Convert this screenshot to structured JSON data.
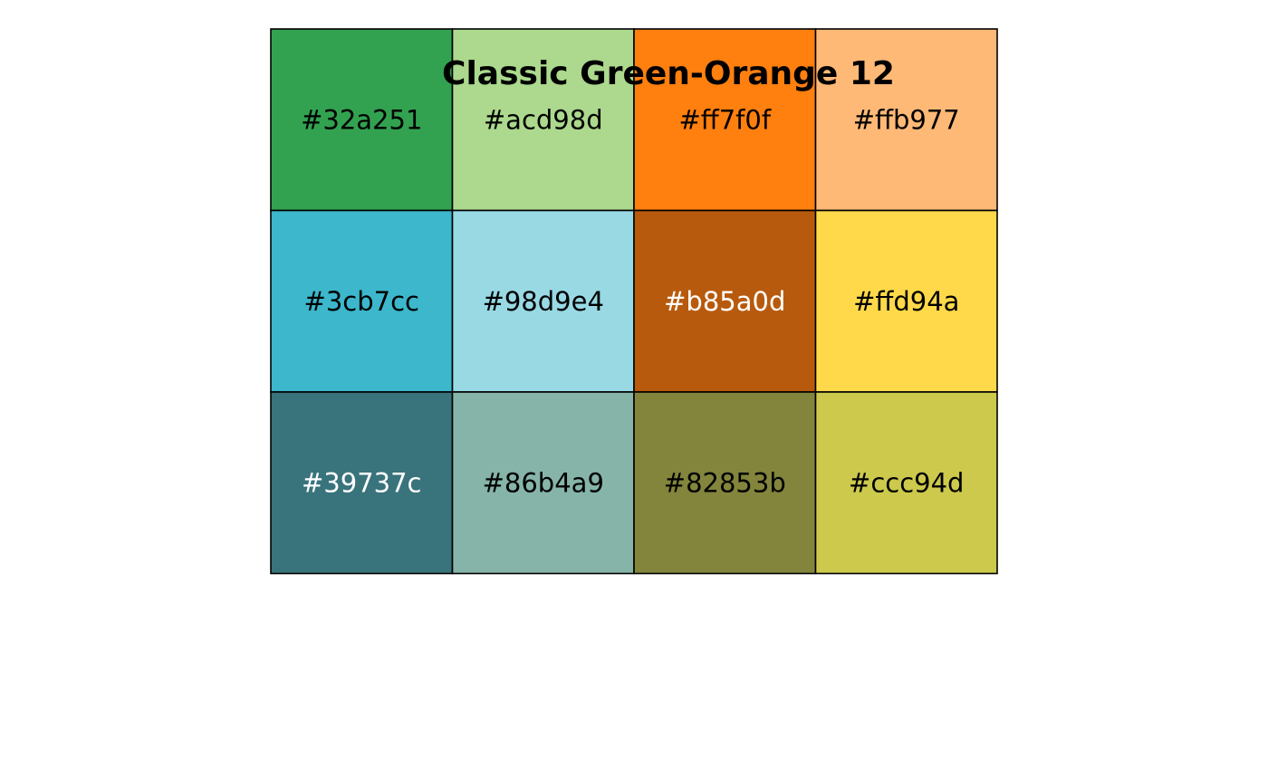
{
  "chart_data": {
    "type": "heatmap",
    "title": "Classic Green-Orange 12",
    "rows": 3,
    "cols": 4,
    "cells": [
      {
        "row": 0,
        "col": 0,
        "label": "#32a251",
        "color": "#32a251",
        "text_color": "#000000"
      },
      {
        "row": 0,
        "col": 1,
        "label": "#acd98d",
        "color": "#acd98d",
        "text_color": "#000000"
      },
      {
        "row": 0,
        "col": 2,
        "label": "#ff7f0f",
        "color": "#ff7f0f",
        "text_color": "#000000"
      },
      {
        "row": 0,
        "col": 3,
        "label": "#ffb977",
        "color": "#ffb977",
        "text_color": "#000000"
      },
      {
        "row": 1,
        "col": 0,
        "label": "#3cb7cc",
        "color": "#3cb7cc",
        "text_color": "#000000"
      },
      {
        "row": 1,
        "col": 1,
        "label": "#98d9e4",
        "color": "#98d9e4",
        "text_color": "#000000"
      },
      {
        "row": 1,
        "col": 2,
        "label": "#b85a0d",
        "color": "#b85a0d",
        "text_color": "#ffffff"
      },
      {
        "row": 1,
        "col": 3,
        "label": "#ffd94a",
        "color": "#ffd94a",
        "text_color": "#000000"
      },
      {
        "row": 2,
        "col": 0,
        "label": "#39737c",
        "color": "#39737c",
        "text_color": "#ffffff"
      },
      {
        "row": 2,
        "col": 1,
        "label": "#86b4a9",
        "color": "#86b4a9",
        "text_color": "#000000"
      },
      {
        "row": 2,
        "col": 2,
        "label": "#82853b",
        "color": "#82853b",
        "text_color": "#000000"
      },
      {
        "row": 2,
        "col": 3,
        "label": "#ccc94d",
        "color": "#ccc94d",
        "text_color": "#000000"
      }
    ]
  }
}
